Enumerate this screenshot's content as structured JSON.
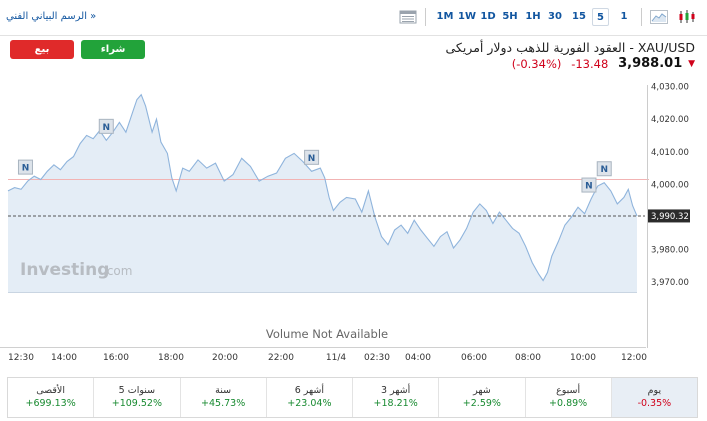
{
  "toolbar": {
    "technical_chart_link": "الرسم البياني الفني »",
    "periods": [
      {
        "label": "1M",
        "active": false
      },
      {
        "label": "1W",
        "active": false
      },
      {
        "label": "1D",
        "active": false
      },
      {
        "label": "5H",
        "active": false
      },
      {
        "label": "1H",
        "active": false
      },
      {
        "label": "30",
        "active": false
      },
      {
        "label": "15",
        "active": false
      },
      {
        "label": "5",
        "active": true
      },
      {
        "label": "1",
        "active": false
      }
    ],
    "icons": [
      "table-view-icon",
      "area-chart-icon",
      "candlestick-chart-icon"
    ]
  },
  "header": {
    "sell_label": "بيع",
    "buy_label": "شراء",
    "instrument_title": "XAU/USD - العقود الفورية للذهب دولار أمريكى",
    "price": "3,988.01",
    "change": "-13.48",
    "change_pct": "(-0.34%)"
  },
  "chart_data": {
    "type": "area",
    "title": "",
    "xlabel": "",
    "ylabel": "",
    "x_ticks": [
      "12:30",
      "14:00",
      "16:00",
      "18:00",
      "20:00",
      "22:00",
      "11/4",
      "02:30",
      "04:00",
      "06:00",
      "08:00",
      "10:00",
      "12:00"
    ],
    "y_ticks": [
      "4,030.00",
      "4,020.00",
      "4,010.00",
      "4,000.00",
      "3,990.32",
      "3,980.00",
      "3,970.00"
    ],
    "ylim": [
      3967,
      4032
    ],
    "prev_close": 4001.5,
    "last_price_label": "3,990.32",
    "last_price": 3990.32,
    "volume_note": "Volume Not Available",
    "watermark": "Investing",
    "watermark_suffix": ".com",
    "news_marker_label": "N",
    "news_markers": [
      {
        "t": "12:45"
      },
      {
        "t": "15:50"
      },
      {
        "t": "23:40"
      },
      {
        "t": "10:15"
      },
      {
        "t": "10:50"
      }
    ],
    "series": [
      {
        "values": [
          [
            "12:05",
            3998.0
          ],
          [
            "12:20",
            3999.0
          ],
          [
            "12:35",
            3998.5
          ],
          [
            "12:50",
            4001.0
          ],
          [
            "13:05",
            4002.5
          ],
          [
            "13:20",
            4001.5
          ],
          [
            "13:35",
            4004.0
          ],
          [
            "13:50",
            4006.0
          ],
          [
            "14:05",
            4004.5
          ],
          [
            "14:20",
            4007.0
          ],
          [
            "14:35",
            4008.5
          ],
          [
            "14:50",
            4012.5
          ],
          [
            "15:05",
            4015.0
          ],
          [
            "15:20",
            4014.0
          ],
          [
            "15:35",
            4016.5
          ],
          [
            "15:50",
            4013.5
          ],
          [
            "16:05",
            4016.0
          ],
          [
            "16:20",
            4019.0
          ],
          [
            "16:35",
            4016.0
          ],
          [
            "16:50",
            4022.0
          ],
          [
            "17:00",
            4026.0
          ],
          [
            "17:10",
            4027.5
          ],
          [
            "17:20",
            4024.0
          ],
          [
            "17:35",
            4016.0
          ],
          [
            "17:45",
            4020.0
          ],
          [
            "17:55",
            4013.0
          ],
          [
            "18:10",
            4009.5
          ],
          [
            "18:20",
            4002.0
          ],
          [
            "18:30",
            3998.0
          ],
          [
            "18:45",
            4005.0
          ],
          [
            "19:00",
            4004.0
          ],
          [
            "19:20",
            4007.5
          ],
          [
            "19:40",
            4005.0
          ],
          [
            "20:00",
            4006.5
          ],
          [
            "20:20",
            4001.0
          ],
          [
            "20:40",
            4003.0
          ],
          [
            "21:00",
            4008.0
          ],
          [
            "21:20",
            4005.5
          ],
          [
            "21:40",
            4001.0
          ],
          [
            "22:00",
            4002.5
          ],
          [
            "22:20",
            4003.5
          ],
          [
            "22:40",
            4008.0
          ],
          [
            "23:00",
            4009.5
          ],
          [
            "23:20",
            4007.0
          ],
          [
            "23:40",
            4004.0
          ],
          [
            "00:00",
            4005.0
          ],
          [
            "00:10",
            4002.0
          ],
          [
            "00:20",
            3996.0
          ],
          [
            "00:30",
            3992.0
          ],
          [
            "00:45",
            3994.5
          ],
          [
            "01:00",
            3996.0
          ],
          [
            "01:20",
            3995.5
          ],
          [
            "01:35",
            3991.5
          ],
          [
            "01:50",
            3998.0
          ],
          [
            "02:05",
            3990.0
          ],
          [
            "02:20",
            3984.0
          ],
          [
            "02:35",
            3981.5
          ],
          [
            "02:50",
            3986.0
          ],
          [
            "03:05",
            3987.5
          ],
          [
            "03:20",
            3985.0
          ],
          [
            "03:35",
            3989.0
          ],
          [
            "03:50",
            3986.0
          ],
          [
            "04:05",
            3983.5
          ],
          [
            "04:20",
            3981.0
          ],
          [
            "04:35",
            3984.0
          ],
          [
            "04:50",
            3985.5
          ],
          [
            "05:05",
            3980.5
          ],
          [
            "05:20",
            3983.0
          ],
          [
            "05:35",
            3986.5
          ],
          [
            "05:50",
            3991.5
          ],
          [
            "06:05",
            3994.0
          ],
          [
            "06:20",
            3992.0
          ],
          [
            "06:35",
            3988.0
          ],
          [
            "06:50",
            3991.5
          ],
          [
            "07:05",
            3989.0
          ],
          [
            "07:20",
            3986.5
          ],
          [
            "07:35",
            3985.0
          ],
          [
            "07:50",
            3981.0
          ],
          [
            "08:05",
            3976.0
          ],
          [
            "08:20",
            3972.5
          ],
          [
            "08:30",
            3970.5
          ],
          [
            "08:40",
            3973.0
          ],
          [
            "08:50",
            3978.0
          ],
          [
            "09:05",
            3982.5
          ],
          [
            "09:20",
            3987.5
          ],
          [
            "09:35",
            3990.0
          ],
          [
            "09:50",
            3993.0
          ],
          [
            "10:05",
            3991.0
          ],
          [
            "10:20",
            3995.5
          ],
          [
            "10:35",
            3999.5
          ],
          [
            "10:50",
            4000.5
          ],
          [
            "11:05",
            3998.0
          ],
          [
            "11:20",
            3994.0
          ],
          [
            "11:35",
            3996.0
          ],
          [
            "11:45",
            3998.5
          ],
          [
            "11:55",
            3993.5
          ],
          [
            "12:05",
            3990.3
          ]
        ]
      }
    ]
  },
  "performance": [
    {
      "label": "الأقصى",
      "value": "+699.13%",
      "dir": "pos",
      "active": false
    },
    {
      "label": "5 سنوات",
      "value": "+109.52%",
      "dir": "pos",
      "active": false
    },
    {
      "label": "سنة",
      "value": "+45.73%",
      "dir": "pos",
      "active": false
    },
    {
      "label": "6 أشهر",
      "value": "+23.04%",
      "dir": "pos",
      "active": false
    },
    {
      "label": "3 أشهر",
      "value": "+18.21%",
      "dir": "pos",
      "active": false
    },
    {
      "label": "شهر",
      "value": "+2.59%",
      "dir": "pos",
      "active": false
    },
    {
      "label": "أسبوع",
      "value": "+0.89%",
      "dir": "pos",
      "active": false
    },
    {
      "label": "يوم",
      "value": "-0.35%",
      "dir": "neg",
      "active": true
    }
  ]
}
